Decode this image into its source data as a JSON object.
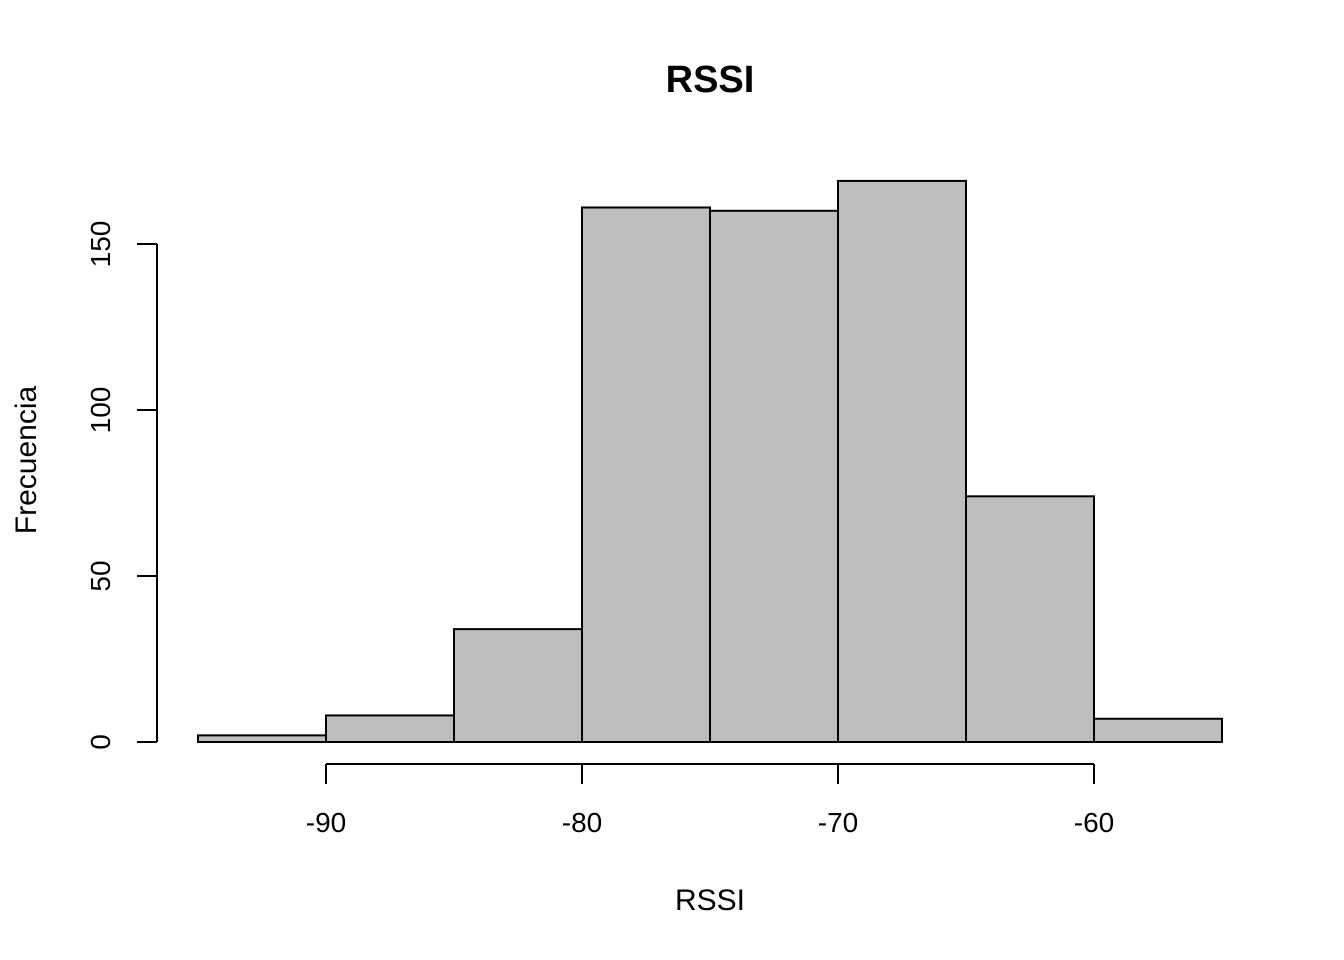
{
  "chart_data": {
    "type": "bar",
    "title": "RSSI",
    "xlabel": "RSSI",
    "ylabel": "Frecuencia",
    "bins": [
      {
        "x0": -95,
        "x1": -90,
        "count": 2
      },
      {
        "x0": -90,
        "x1": -85,
        "count": 8
      },
      {
        "x0": -85,
        "x1": -80,
        "count": 34
      },
      {
        "x0": -80,
        "x1": -75,
        "count": 161
      },
      {
        "x0": -75,
        "x1": -70,
        "count": 160
      },
      {
        "x0": -70,
        "x1": -65,
        "count": 169
      },
      {
        "x0": -65,
        "x1": -60,
        "count": 74
      },
      {
        "x0": -60,
        "x1": -55,
        "count": 7
      }
    ],
    "xticks": [
      -90,
      -80,
      -70,
      -60
    ],
    "xtick_labels": [
      "-90",
      "-80",
      "-70",
      "-60"
    ],
    "yticks": [
      0,
      50,
      100,
      150
    ],
    "ytick_labels": [
      "0",
      "50",
      "100",
      "150"
    ],
    "xlim": [
      -95,
      -55
    ],
    "ylim": [
      0,
      169
    ],
    "grid": false,
    "bar_color": "#bebebe",
    "edge_color": "#000000"
  }
}
